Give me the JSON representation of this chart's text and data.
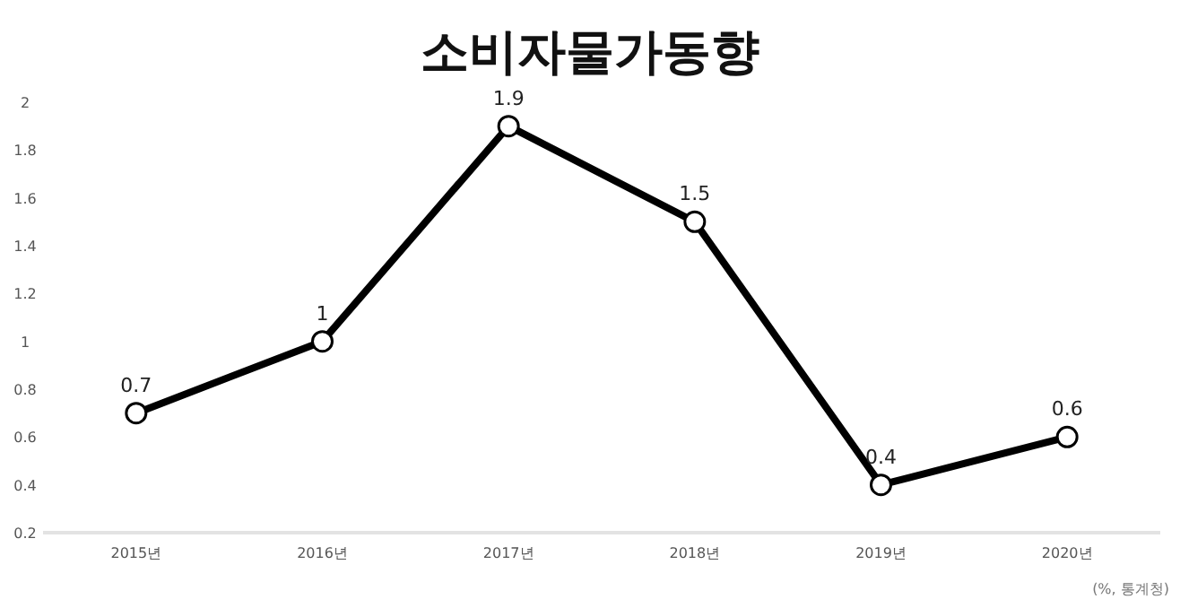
{
  "chart_data": {
    "type": "line",
    "title": "소비자물가동향",
    "categories": [
      "2015년",
      "2016년",
      "2017년",
      "2018년",
      "2019년",
      "2020년"
    ],
    "series": [
      {
        "color": "#000000",
        "values": [
          0.7,
          1,
          1.9,
          1.5,
          0.4,
          0.6
        ]
      }
    ],
    "ylim": [
      0.2,
      2
    ],
    "yticks": [
      0.2,
      0.4,
      0.6,
      0.8,
      1,
      1.2,
      1.4,
      1.6,
      1.8,
      2
    ],
    "data_labels": true,
    "marker": "circle",
    "line_style": "solid",
    "grid": false,
    "annotations": [
      "(%, 통계청)"
    ]
  }
}
